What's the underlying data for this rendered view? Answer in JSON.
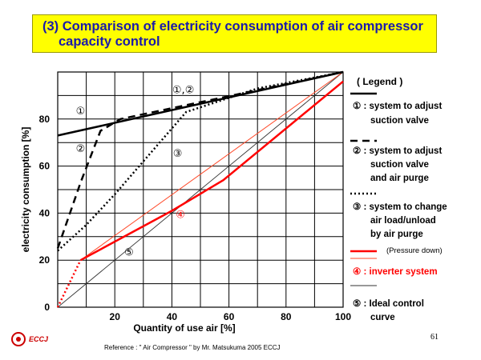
{
  "page": {
    "title_line1": "(3) Comparison of electricity consumption of air compressor",
    "title_line2": "capacity control",
    "reference": "Reference : \" Air Compressor \" by Mr. Matsukuma  2005 ECCJ",
    "page_number": "61",
    "logo_text": "ECCJ"
  },
  "colors": {
    "title_bg": "#ffff00",
    "title_text": "#1a1aaa",
    "inverter": "#ff0000",
    "ideal": "#444444",
    "black": "#000000"
  },
  "chart_data": {
    "type": "line",
    "xlabel": "Quantity of use air [%]",
    "ylabel": "electricity consumption [%]",
    "xlim": [
      0,
      100
    ],
    "ylim": [
      0,
      100
    ],
    "x_ticks": [
      20,
      40,
      60,
      80,
      100
    ],
    "y_ticks": [
      0,
      20,
      40,
      60,
      80
    ],
    "grid": true,
    "legend_position": "right",
    "legend_title": "( Legend )",
    "series": [
      {
        "id": "s1",
        "label_marker": "①",
        "style": "solid-black",
        "points": [
          [
            0,
            73
          ],
          [
            100,
            100
          ]
        ]
      },
      {
        "id": "s2",
        "label_marker": "②",
        "style": "dashed-black",
        "points": [
          [
            0,
            25
          ],
          [
            8,
            53
          ],
          [
            15,
            75
          ],
          [
            22,
            80
          ],
          [
            100,
            100
          ]
        ]
      },
      {
        "id": "s3",
        "label_marker": "③",
        "style": "dotted-black",
        "points": [
          [
            0,
            24
          ],
          [
            10,
            35
          ],
          [
            20,
            48
          ],
          [
            30,
            62
          ],
          [
            40,
            76
          ],
          [
            45,
            83
          ],
          [
            60,
            89
          ],
          [
            70,
            93
          ],
          [
            100,
            100
          ]
        ]
      },
      {
        "id": "s4",
        "label_marker": "④",
        "style": "solid-red",
        "points": [
          [
            8,
            20
          ],
          [
            40,
            41
          ],
          [
            58,
            54
          ],
          [
            100,
            96
          ]
        ]
      },
      {
        "id": "s4_start",
        "style": "dotted-red",
        "points": [
          [
            0,
            0
          ],
          [
            8,
            20
          ]
        ]
      },
      {
        "id": "s4_pd",
        "style": "thin-red",
        "points": [
          [
            8,
            20
          ],
          [
            100,
            100
          ]
        ]
      },
      {
        "id": "s5",
        "label_marker": "⑤",
        "style": "thin-gray",
        "points": [
          [
            0,
            0
          ],
          [
            100,
            100
          ]
        ]
      }
    ],
    "chart_annotations": [
      {
        "text": "①",
        "x": 8,
        "y": 82,
        "color": "#000000"
      },
      {
        "text": "②",
        "x": 8,
        "y": 66,
        "color": "#000000"
      },
      {
        "text": "①,②",
        "x": 44,
        "y": 91,
        "color": "#000000"
      },
      {
        "text": "③",
        "x": 42,
        "y": 64,
        "color": "#000000"
      },
      {
        "text": "④",
        "x": 43,
        "y": 38,
        "color": "#ff0000"
      },
      {
        "text": "⑤",
        "x": 25,
        "y": 22,
        "color": "#000000"
      }
    ],
    "legend": [
      {
        "style": "solid-black",
        "lines": [
          "① : system to adjust",
          "suction valve"
        ]
      },
      {
        "style": "dashed-black",
        "lines": [
          "② : system to adjust",
          "suction valve",
          "and air purge"
        ]
      },
      {
        "style": "dotted-black",
        "lines": [
          "③ : system to change",
          "air load/unload",
          "by air purge"
        ]
      },
      {
        "style": "solid-red",
        "lines": [
          "(Pressure down)"
        ]
      },
      {
        "style": "thin-red",
        "lines": [
          "④ : inverter system"
        ]
      },
      {
        "style": "thin-gray",
        "lines": [
          "⑤ : Ideal control",
          "curve"
        ]
      }
    ]
  }
}
